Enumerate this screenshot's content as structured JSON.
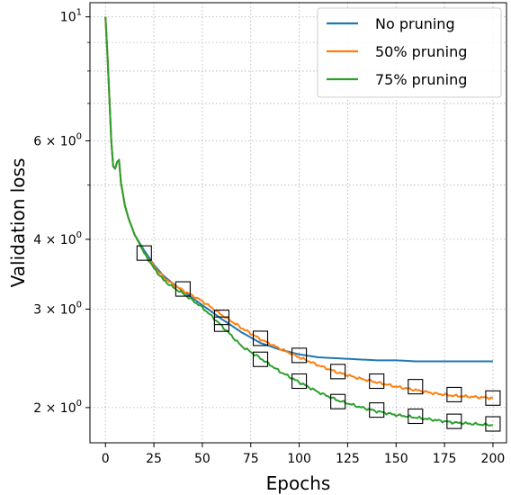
{
  "chart_data": {
    "type": "line",
    "xlabel": "Epochs",
    "ylabel": "Validation loss",
    "yscale": "log",
    "xlim": [
      -8,
      207
    ],
    "ylim": [
      1.73,
      10.6
    ],
    "grid": true,
    "legend_position": "top-right",
    "x_ticks": [
      {
        "value": 0,
        "label": "0"
      },
      {
        "value": 25,
        "label": "25"
      },
      {
        "value": 50,
        "label": "50"
      },
      {
        "value": 75,
        "label": "75"
      },
      {
        "value": 100,
        "label": "100"
      },
      {
        "value": 125,
        "label": "125"
      },
      {
        "value": 150,
        "label": "150"
      },
      {
        "value": 175,
        "label": "175"
      },
      {
        "value": 200,
        "label": "200"
      }
    ],
    "y_ticks": [
      {
        "value": 10,
        "base": "10",
        "exp": "1",
        "coef": ""
      },
      {
        "value": 6,
        "base": "10",
        "exp": "0",
        "coef": "6 × "
      },
      {
        "value": 4,
        "base": "10",
        "exp": "0",
        "coef": "4 × "
      },
      {
        "value": 3,
        "base": "10",
        "exp": "0",
        "coef": "3 × "
      },
      {
        "value": 2,
        "base": "10",
        "exp": "0",
        "coef": "2 × "
      }
    ],
    "series": [
      {
        "name": "No pruning",
        "color": "#1f77b4",
        "x": [
          0,
          1,
          2,
          3,
          4,
          5,
          6,
          7,
          8,
          10,
          12,
          15,
          18,
          20,
          25,
          30,
          35,
          40,
          50,
          60,
          70,
          80,
          90,
          100,
          110,
          120,
          130,
          140,
          150,
          160,
          170,
          180,
          190,
          200
        ],
        "y": [
          10.0,
          8.6,
          7.2,
          6.0,
          5.4,
          5.35,
          5.5,
          5.55,
          5.05,
          4.6,
          4.35,
          4.08,
          3.92,
          3.82,
          3.6,
          3.44,
          3.33,
          3.23,
          3.05,
          2.88,
          2.73,
          2.61,
          2.54,
          2.49,
          2.46,
          2.45,
          2.44,
          2.43,
          2.43,
          2.42,
          2.42,
          2.42,
          2.42,
          2.42
        ]
      },
      {
        "name": "50% pruning",
        "color": "#ff7f0e",
        "x": [
          0,
          1,
          2,
          3,
          4,
          5,
          6,
          7,
          8,
          10,
          12,
          15,
          18,
          20,
          25,
          30,
          35,
          40,
          50,
          60,
          70,
          80,
          90,
          100,
          110,
          120,
          130,
          140,
          150,
          160,
          170,
          180,
          190,
          200
        ],
        "y": [
          10.0,
          8.6,
          7.2,
          6.0,
          5.4,
          5.35,
          5.5,
          5.55,
          5.05,
          4.6,
          4.35,
          4.08,
          3.9,
          3.78,
          3.58,
          3.42,
          3.32,
          3.24,
          3.1,
          2.93,
          2.78,
          2.65,
          2.55,
          2.46,
          2.38,
          2.31,
          2.26,
          2.22,
          2.18,
          2.15,
          2.12,
          2.1,
          2.09,
          2.08
        ]
      },
      {
        "name": "75% pruning",
        "color": "#2ca02c",
        "x": [
          0,
          1,
          2,
          3,
          4,
          5,
          6,
          7,
          8,
          10,
          12,
          15,
          18,
          20,
          25,
          30,
          35,
          40,
          50,
          60,
          70,
          80,
          90,
          100,
          110,
          120,
          130,
          140,
          150,
          160,
          170,
          180,
          190,
          200
        ],
        "y": [
          10.0,
          8.6,
          7.2,
          6.0,
          5.4,
          5.35,
          5.5,
          5.55,
          5.05,
          4.6,
          4.35,
          4.08,
          3.9,
          3.78,
          3.55,
          3.38,
          3.28,
          3.2,
          3.02,
          2.8,
          2.58,
          2.45,
          2.32,
          2.22,
          2.13,
          2.06,
          2.01,
          1.97,
          1.94,
          1.92,
          1.9,
          1.88,
          1.87,
          1.86
        ]
      }
    ],
    "markers": [
      {
        "x": 20,
        "y": 3.78
      },
      {
        "x": 40,
        "y": 3.26
      },
      {
        "x": 60,
        "y": 2.9
      },
      {
        "x": 60,
        "y": 2.82
      },
      {
        "x": 80,
        "y": 2.66
      },
      {
        "x": 80,
        "y": 2.44
      },
      {
        "x": 100,
        "y": 2.48
      },
      {
        "x": 100,
        "y": 2.23
      },
      {
        "x": 120,
        "y": 2.32
      },
      {
        "x": 120,
        "y": 2.05
      },
      {
        "x": 140,
        "y": 2.23
      },
      {
        "x": 140,
        "y": 1.98
      },
      {
        "x": 160,
        "y": 2.18
      },
      {
        "x": 160,
        "y": 1.93
      },
      {
        "x": 180,
        "y": 2.11
      },
      {
        "x": 180,
        "y": 1.89
      },
      {
        "x": 200,
        "y": 2.08
      },
      {
        "x": 200,
        "y": 1.87
      }
    ]
  }
}
